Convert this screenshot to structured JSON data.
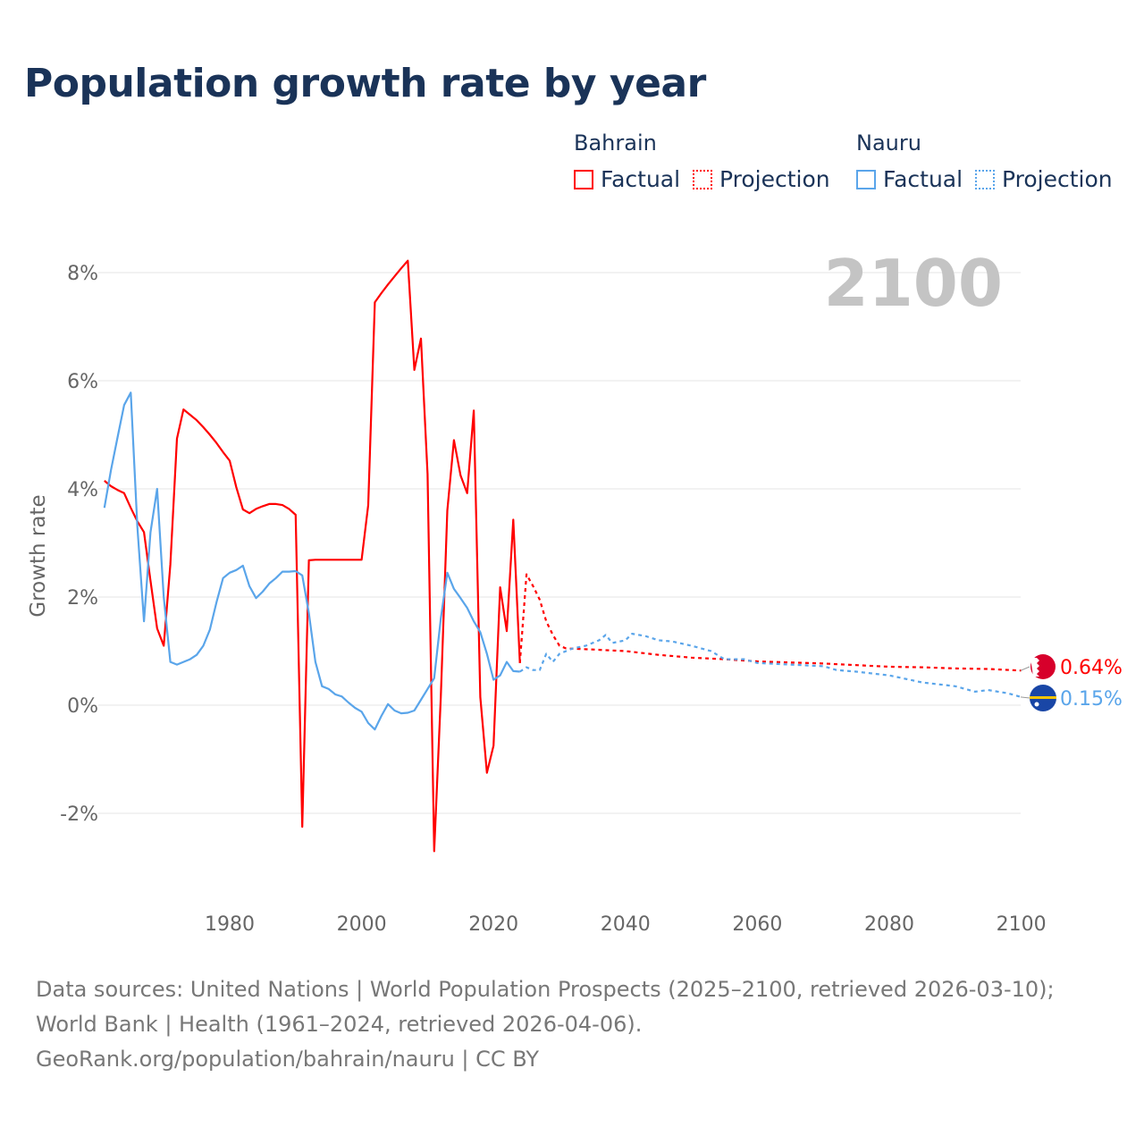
{
  "title": "Population growth rate by year",
  "legend": {
    "groups": [
      {
        "name": "Bahrain",
        "factual": "Factual",
        "projection": "Projection",
        "color": "#ff0000"
      },
      {
        "name": "Nauru",
        "factual": "Factual",
        "projection": "Projection",
        "color": "#5aa5ea"
      }
    ]
  },
  "chart_data": {
    "type": "line",
    "title": "Population growth rate by year",
    "ylabel": "Growth rate",
    "xlabel": "",
    "xlim": [
      1961,
      2100
    ],
    "ylim": [
      -3.3,
      8.6
    ],
    "xticks": [
      "1980",
      "2000",
      "2020",
      "2040",
      "2060",
      "2080",
      "2100"
    ],
    "yticks": [
      "8%",
      "6%",
      "4%",
      "2%",
      "0%",
      "-2%"
    ],
    "year_label": "2100",
    "grid": true,
    "series": [
      {
        "name": "Bahrain",
        "kind": "Factual",
        "color": "#ff0000",
        "x": [
          1961,
          1962,
          1963,
          1964,
          1965,
          1966,
          1967,
          1968,
          1969,
          1970,
          1971,
          1972,
          1973,
          1974,
          1975,
          1976,
          1977,
          1978,
          1979,
          1980,
          1981,
          1982,
          1983,
          1984,
          1985,
          1986,
          1987,
          1988,
          1989,
          1990,
          1991,
          1992,
          1993,
          1994,
          1995,
          1996,
          1997,
          1998,
          1999,
          2000,
          2001,
          2002,
          2003,
          2004,
          2005,
          2006,
          2007,
          2008,
          2009,
          2010,
          2011,
          2012,
          2013,
          2014,
          2015,
          2016,
          2017,
          2018,
          2019,
          2020,
          2021,
          2022,
          2023,
          2024
        ],
        "y": [
          4.15,
          4.05,
          3.98,
          3.92,
          3.65,
          3.4,
          3.2,
          2.3,
          1.42,
          1.1,
          2.6,
          4.93,
          5.47,
          5.37,
          5.27,
          5.14,
          5.0,
          4.85,
          4.68,
          4.52,
          4.03,
          3.62,
          3.55,
          3.63,
          3.68,
          3.72,
          3.72,
          3.7,
          3.63,
          3.52,
          -2.25,
          2.68,
          2.69,
          2.69,
          2.69,
          2.69,
          2.69,
          2.69,
          2.69,
          2.69,
          3.7,
          7.45,
          7.62,
          7.78,
          7.93,
          8.08,
          8.22,
          6.2,
          6.78,
          4.27,
          -2.7,
          0.15,
          3.6,
          4.9,
          4.25,
          3.92,
          5.45,
          0.15,
          -1.25,
          -0.75,
          2.18,
          1.37,
          3.43,
          0.78
        ]
      },
      {
        "name": "Bahrain",
        "kind": "Projection",
        "color": "#ff0000",
        "x": [
          2024,
          2025,
          2026,
          2027,
          2028,
          2029,
          2030,
          2031,
          2035,
          2040,
          2045,
          2050,
          2055,
          2060,
          2065,
          2070,
          2075,
          2080,
          2085,
          2090,
          2095,
          2100
        ],
        "y": [
          0.78,
          2.42,
          2.2,
          1.95,
          1.55,
          1.3,
          1.1,
          1.05,
          1.03,
          1.0,
          0.93,
          0.88,
          0.85,
          0.81,
          0.79,
          0.77,
          0.74,
          0.71,
          0.7,
          0.68,
          0.67,
          0.64
        ]
      },
      {
        "name": "Nauru",
        "kind": "Factual",
        "color": "#5aa5ea",
        "x": [
          1961,
          1962,
          1963,
          1964,
          1965,
          1966,
          1967,
          1968,
          1969,
          1970,
          1971,
          1972,
          1973,
          1974,
          1975,
          1976,
          1977,
          1978,
          1979,
          1980,
          1981,
          1982,
          1983,
          1984,
          1985,
          1986,
          1987,
          1988,
          1989,
          1990,
          1991,
          1992,
          1993,
          1994,
          1995,
          1996,
          1997,
          1998,
          1999,
          2000,
          2001,
          2002,
          2003,
          2004,
          2005,
          2006,
          2007,
          2008,
          2009,
          2010,
          2011,
          2012,
          2013,
          2014,
          2015,
          2016,
          2017,
          2018,
          2019,
          2020,
          2021,
          2022,
          2023,
          2024
        ],
        "y": [
          3.65,
          4.35,
          4.95,
          5.55,
          5.78,
          3.3,
          1.55,
          3.2,
          4.0,
          2.0,
          0.8,
          0.75,
          0.8,
          0.85,
          0.93,
          1.1,
          1.4,
          1.9,
          2.35,
          2.45,
          2.5,
          2.58,
          2.2,
          1.98,
          2.1,
          2.25,
          2.35,
          2.47,
          2.47,
          2.48,
          2.4,
          1.7,
          0.8,
          0.35,
          0.3,
          0.2,
          0.16,
          0.05,
          -0.05,
          -0.12,
          -0.33,
          -0.45,
          -0.2,
          0.02,
          -0.1,
          -0.15,
          -0.14,
          -0.1,
          0.1,
          0.3,
          0.5,
          1.6,
          2.45,
          2.15,
          1.98,
          1.8,
          1.55,
          1.35,
          0.95,
          0.47,
          0.55,
          0.8,
          0.63,
          0.62
        ]
      },
      {
        "name": "Nauru",
        "kind": "Projection",
        "color": "#5aa5ea",
        "x": [
          2024,
          2025,
          2026,
          2027,
          2028,
          2029,
          2030,
          2032,
          2034,
          2036,
          2037,
          2038,
          2040,
          2041,
          2043,
          2045,
          2047,
          2050,
          2053,
          2055,
          2058,
          2060,
          2065,
          2070,
          2072,
          2075,
          2080,
          2082,
          2085,
          2090,
          2093,
          2095,
          2098,
          2100
        ],
        "y": [
          0.62,
          0.7,
          0.65,
          0.65,
          0.95,
          0.8,
          0.95,
          1.05,
          1.1,
          1.2,
          1.3,
          1.15,
          1.2,
          1.32,
          1.28,
          1.2,
          1.18,
          1.1,
          1.0,
          0.85,
          0.85,
          0.78,
          0.75,
          0.72,
          0.65,
          0.62,
          0.55,
          0.5,
          0.42,
          0.35,
          0.25,
          0.28,
          0.22,
          0.15
        ]
      }
    ],
    "end_labels": [
      {
        "name": "Bahrain",
        "value": 0.64,
        "label": "0.64%",
        "color": "#ff0000"
      },
      {
        "name": "Nauru",
        "value": 0.15,
        "label": "0.15%",
        "color": "#5aa5ea"
      }
    ]
  },
  "footer": {
    "sources": "Data sources: United Nations | World Population Prospects (2025–2100, retrieved 2026-03-10); World Bank | Health (1961–2024, retrieved 2026-04-06).",
    "link": "GeoRank.org/population/bahrain/nauru | CC BY"
  }
}
